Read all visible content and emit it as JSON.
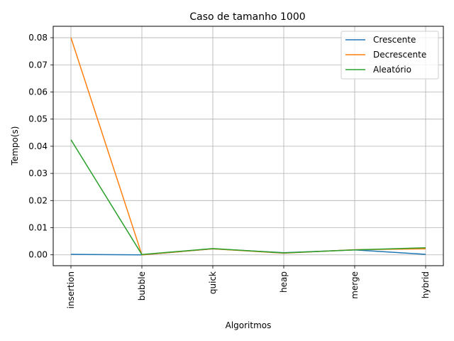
{
  "chart_data": {
    "type": "line",
    "title": "Caso de tamanho 1000",
    "xlabel": "Algoritmos",
    "ylabel": "Tempo(s)",
    "categories": [
      "insertion",
      "bubble",
      "quick",
      "heap",
      "merge",
      "hybrid"
    ],
    "ylim": [
      -0.004,
      0.0842
    ],
    "yticks": [
      0.0,
      0.01,
      0.02,
      0.03,
      0.04,
      0.05,
      0.06,
      0.07,
      0.08
    ],
    "ytick_labels": [
      "0.00",
      "0.01",
      "0.02",
      "0.03",
      "0.04",
      "0.05",
      "0.06",
      "0.07",
      "0.08"
    ],
    "grid": true,
    "legend_position": "top-right",
    "series": [
      {
        "name": "Crescente",
        "color": "#1f77b4",
        "values": [
          0.0002,
          0.0,
          0.0022,
          0.0008,
          0.0018,
          0.0002
        ]
      },
      {
        "name": "Decrescente",
        "color": "#ff7f0e",
        "values": [
          0.08,
          0.0,
          0.0022,
          0.0006,
          0.0019,
          0.0022
        ]
      },
      {
        "name": "Aleatório",
        "color": "#2ca02c",
        "values": [
          0.0424,
          0.0001,
          0.0023,
          0.0007,
          0.0018,
          0.0026
        ]
      }
    ]
  }
}
